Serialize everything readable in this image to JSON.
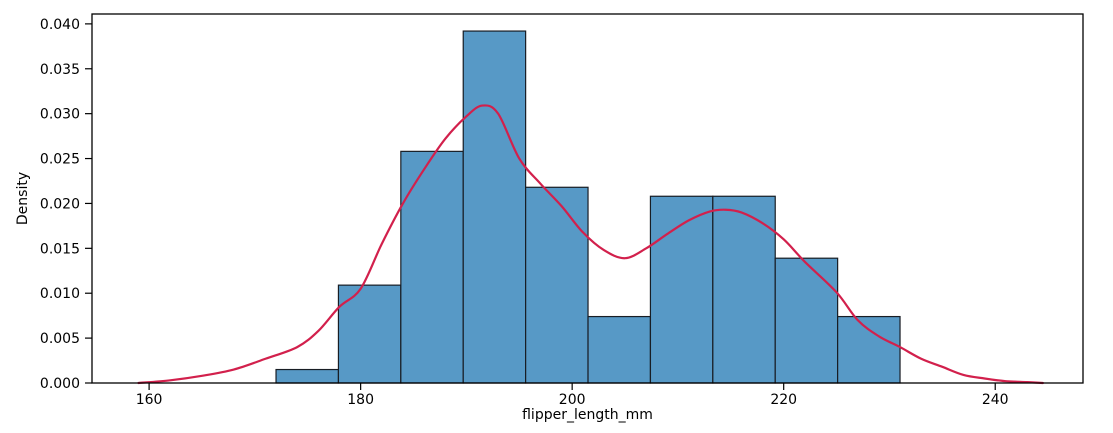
{
  "chart_data": {
    "type": "histogram",
    "title": "",
    "xlabel": "flipper_length_mm",
    "ylabel": "Density",
    "xlim": [
      154.6,
      248.3
    ],
    "ylim": [
      0,
      0.0411
    ],
    "grid": false,
    "legend": false,
    "x_ticks": {
      "values": [
        160,
        180,
        200,
        220,
        240
      ],
      "labels": [
        "160",
        "180",
        "200",
        "220",
        "240"
      ]
    },
    "y_ticks": {
      "values": [
        0,
        0.005,
        0.01,
        0.015,
        0.02,
        0.025,
        0.03,
        0.035,
        0.04
      ],
      "labels": [
        "0.000",
        "0.005",
        "0.010",
        "0.015",
        "0.020",
        "0.025",
        "0.030",
        "0.035",
        "0.040"
      ]
    },
    "histogram": {
      "bin_edges": [
        172.0,
        177.9,
        183.8,
        189.7,
        195.6,
        201.5,
        207.4,
        213.3,
        219.2,
        225.1,
        231.0
      ],
      "densities": [
        0.0015,
        0.0109,
        0.0258,
        0.0392,
        0.0218,
        0.0074,
        0.0208,
        0.0208,
        0.0139,
        0.0074
      ]
    },
    "kde": {
      "x": [
        159,
        162,
        165,
        168,
        171,
        174,
        176,
        178,
        180,
        182,
        184,
        186,
        188,
        190,
        191.5,
        193,
        195,
        197,
        199,
        201,
        203,
        205,
        207,
        209,
        211,
        213,
        214.5,
        216,
        218,
        220,
        222,
        225,
        227,
        229,
        231,
        233,
        235,
        237,
        239,
        241,
        243,
        244.5
      ],
      "y": [
        0.0,
        0.0003,
        0.0008,
        0.0015,
        0.0027,
        0.004,
        0.0058,
        0.0085,
        0.0105,
        0.0155,
        0.02,
        0.0238,
        0.0272,
        0.0297,
        0.0309,
        0.03,
        0.025,
        0.0222,
        0.0197,
        0.0168,
        0.0148,
        0.0139,
        0.015,
        0.0166,
        0.0181,
        0.0191,
        0.0193,
        0.019,
        0.0178,
        0.016,
        0.0135,
        0.0101,
        0.007,
        0.0052,
        0.004,
        0.0027,
        0.0018,
        0.0009,
        0.0005,
        0.0002,
        0.0001,
        0.0
      ]
    },
    "colors": {
      "bar_fill": "#5799c6",
      "bar_edge": "#181d24",
      "kde_line": "#d2204c",
      "spine": "#000000",
      "tick_text": "#000000",
      "background": "#ffffff"
    }
  }
}
